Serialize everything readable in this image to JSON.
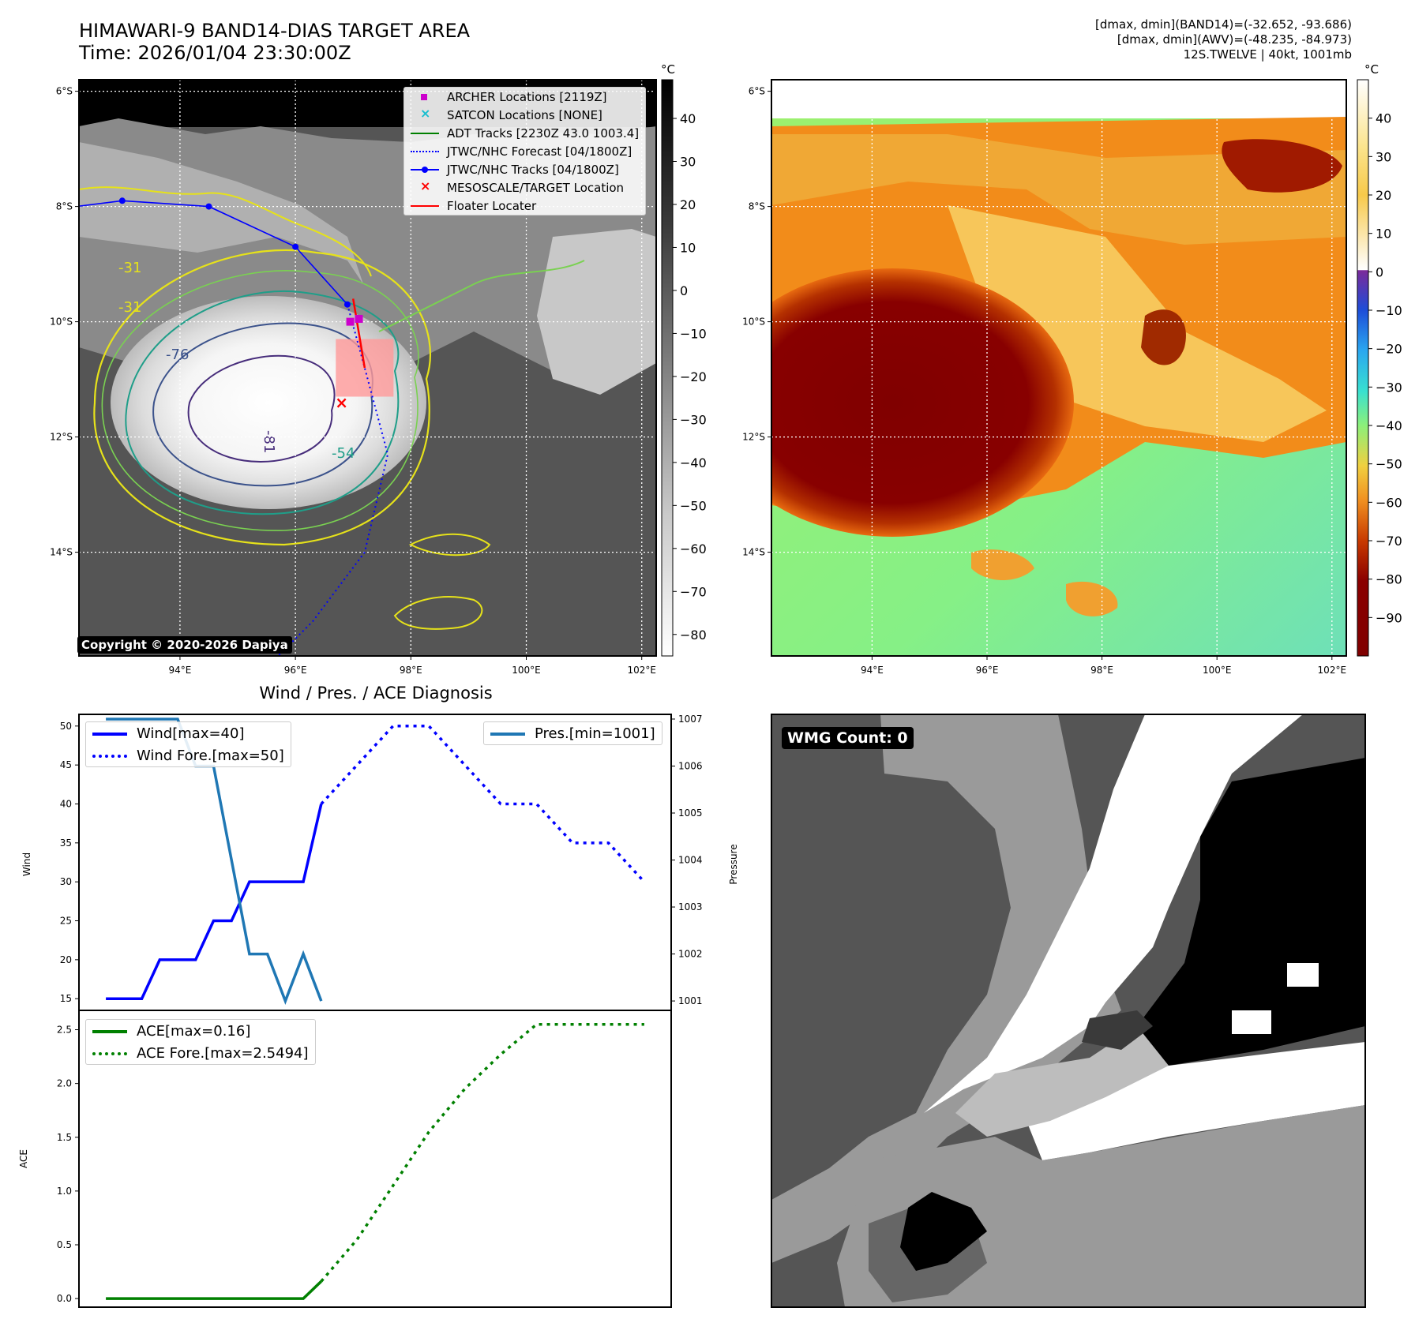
{
  "title": {
    "line1": "HIMAWARI-9 BAND14-DIAS TARGET AREA",
    "line2": "Time: 2026/01/04 23:30:00Z"
  },
  "info": {
    "line1": "[dmax, dmin](BAND14)=(-32.652, -93.686)",
    "line2": "[dmax, dmin](AWV)=(-48.235, -84.973)",
    "line3": "12S.TWELVE | 40kt, 1001mb"
  },
  "map": {
    "lat_labels": [
      "6°S",
      "8°S",
      "10°S",
      "12°S",
      "14°S"
    ],
    "lon_labels": [
      "94°E",
      "96°E",
      "98°E",
      "100°E",
      "102°E"
    ],
    "lat_values": [
      -6,
      -8,
      -10,
      -12,
      -14
    ],
    "lon_values": [
      94,
      96,
      98,
      100,
      102
    ],
    "lon_range": [
      92.25,
      102.25
    ],
    "lat_range": [
      -5.8,
      -15.8
    ],
    "copyright": "Copyright © 2020-2026 Dapiya",
    "contour_labels": [
      "-31",
      "-54",
      "-76",
      "-81"
    ],
    "best_track": [
      [
        92.2,
        -8.0
      ],
      [
        93.0,
        -7.9
      ],
      [
        94.5,
        -8.0
      ],
      [
        96.0,
        -8.7
      ],
      [
        96.9,
        -9.7
      ]
    ],
    "forecast_track": [
      [
        96.9,
        -9.7
      ],
      [
        97.2,
        -10.8
      ],
      [
        97.6,
        -12.3
      ],
      [
        97.2,
        -14.0
      ],
      [
        96.3,
        -15.2
      ],
      [
        95.6,
        -15.9
      ]
    ],
    "floater": [
      [
        97.0,
        -9.6
      ],
      [
        97.2,
        -10.8
      ]
    ],
    "archer": [
      [
        97.1,
        -9.95
      ],
      [
        96.95,
        -10.0
      ]
    ],
    "target": [
      [
        96.8,
        -11.4
      ]
    ],
    "target_box": {
      "lon": [
        96.7,
        97.7
      ],
      "lat": [
        -10.3,
        -11.3
      ]
    }
  },
  "colorbar_left": {
    "unit": "°C",
    "ticks": [
      "40",
      "30",
      "20",
      "10",
      "0",
      "−10",
      "−20",
      "−30",
      "−40",
      "−50",
      "−60",
      "−70",
      "−80"
    ],
    "range": [
      -85,
      49
    ]
  },
  "colorbar_right": {
    "unit": "°C",
    "ticks": [
      "40",
      "30",
      "20",
      "10",
      "0",
      "−10",
      "−20",
      "−30",
      "−40",
      "−50",
      "−60",
      "−70",
      "−80",
      "−90"
    ],
    "range": [
      -100,
      50
    ]
  },
  "legend_map": [
    {
      "label": "ARCHER Locations [2119Z]",
      "symbol": "square",
      "color": "#cc00cc"
    },
    {
      "label": "SATCON Locations [NONE]",
      "symbol": "x",
      "color": "#17becf"
    },
    {
      "label": "ADT Tracks [2230Z 43.0 1003.4]",
      "symbol": "line",
      "color": "#008000"
    },
    {
      "label": "JTWC/NHC Forecast [04/1800Z]",
      "symbol": "dotted",
      "color": "#0000ff"
    },
    {
      "label": "JTWC/NHC Tracks [04/1800Z]",
      "symbol": "line-dot",
      "color": "#0000ff"
    },
    {
      "label": "MESOSCALE/TARGET Location",
      "symbol": "x",
      "color": "#ff0000"
    },
    {
      "label": "Floater Locater",
      "symbol": "line",
      "color": "#ff0000"
    }
  ],
  "diagnosis": {
    "title": "Wind / Pres. / ACE Diagnosis",
    "wind_label": "Wind",
    "pressure_label": "Pressure",
    "ace_label": "ACE",
    "legend_wind": "Wind[max=40]",
    "legend_wind_fore": "Wind Fore.[max=50]",
    "legend_pres": "Pres.[min=1001]",
    "legend_ace": "ACE[max=0.16]",
    "legend_ace_fore": "ACE Fore.[max=2.5494]",
    "wind_ticks": [
      "15",
      "20",
      "25",
      "30",
      "35",
      "40",
      "45",
      "50"
    ],
    "pres_ticks": [
      "1001",
      "1002",
      "1003",
      "1004",
      "1005",
      "1006",
      "1007"
    ],
    "ace_ticks": [
      "0.0",
      "0.5",
      "1.0",
      "1.5",
      "2.0",
      "2.5"
    ]
  },
  "wmg": {
    "label": "WMG Count: 0"
  },
  "chart_data": [
    {
      "type": "line",
      "title": "Wind / Pres. / ACE Diagnosis",
      "xlabel": "",
      "ylabel": "Wind",
      "ylim": [
        13.5,
        51.5
      ],
      "series": [
        {
          "name": "Wind[max=40]",
          "style": "solid",
          "color": "#0000ff",
          "x": [
            0,
            1,
            2,
            3,
            4,
            5,
            6,
            7,
            8,
            9,
            10,
            11,
            12
          ],
          "values": [
            15,
            15,
            15,
            20,
            20,
            20,
            25,
            25,
            30,
            30,
            30,
            30,
            40
          ]
        },
        {
          "name": "Wind Fore.[max=50]",
          "style": "dotted",
          "color": "#0000ff",
          "x": [
            12,
            14,
            16,
            18,
            20,
            22,
            24,
            26,
            28,
            30
          ],
          "values": [
            40,
            45,
            50,
            50,
            45,
            40,
            40,
            35,
            35,
            30
          ]
        }
      ]
    },
    {
      "type": "line",
      "ylabel": "Pressure",
      "ylim": [
        1000.8,
        1007.1
      ],
      "series": [
        {
          "name": "Pres.[min=1001]",
          "style": "solid",
          "color": "#1f77b4",
          "x": [
            0,
            1,
            2,
            3,
            4,
            5,
            6,
            7,
            8,
            9,
            10,
            11,
            12
          ],
          "values": [
            1007,
            1007,
            1007,
            1007,
            1007,
            1006,
            1006,
            1004,
            1002,
            1002,
            1001,
            1002,
            1001
          ]
        }
      ]
    },
    {
      "type": "line",
      "ylabel": "ACE",
      "ylim": [
        -0.08,
        2.68
      ],
      "series": [
        {
          "name": "ACE[max=0.16]",
          "style": "solid",
          "color": "#008000",
          "x": [
            0,
            2,
            4,
            6,
            8,
            10,
            11,
            12
          ],
          "values": [
            0,
            0,
            0,
            0,
            0,
            0,
            0,
            0.16
          ]
        },
        {
          "name": "ACE Fore.[max=2.5494]",
          "style": "dotted",
          "color": "#008000",
          "x": [
            12,
            14,
            16,
            18,
            20,
            22,
            24,
            26,
            28,
            30
          ],
          "values": [
            0.16,
            0.55,
            1.05,
            1.55,
            1.95,
            2.27,
            2.55,
            2.55,
            2.55,
            2.55
          ]
        }
      ]
    }
  ]
}
